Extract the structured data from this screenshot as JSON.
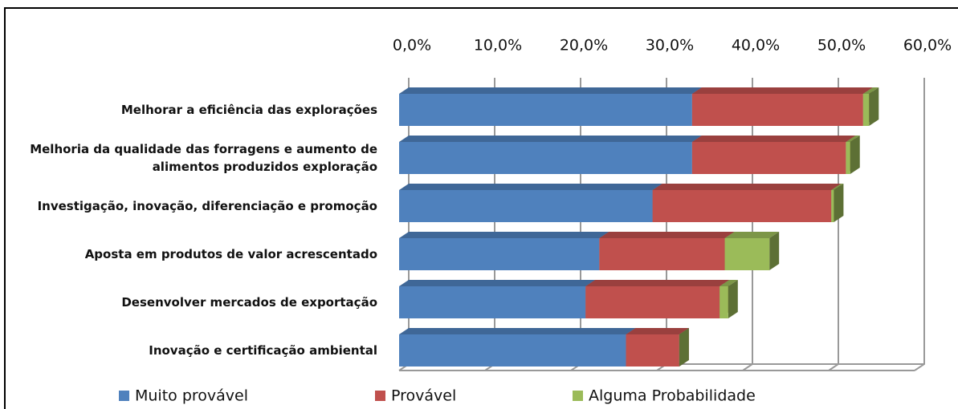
{
  "chart_data": {
    "type": "bar3d_stacked_horizontal",
    "categories": [
      "Melhorar a eficiência das explorações",
      "Melhoria da qualidade das forragens e aumento de alimentos produzidos exploração",
      "Investigação, inovação, diferenciação e promoção",
      "Aposta em produtos de valor acrescentado",
      "Desenvolver mercados de exportação",
      "Inovação e certificação ambiental"
    ],
    "series": [
      {
        "name": "Muito provável",
        "color": "#4f81bd",
        "values": [
          34.1,
          34.1,
          29.5,
          23.3,
          21.7,
          26.4
        ]
      },
      {
        "name": "Provável",
        "color": "#c0504d",
        "values": [
          19.9,
          17.9,
          20.8,
          14.6,
          15.6,
          6.2
        ]
      },
      {
        "name": "Alguma Probabilidade",
        "color": "#9bbb59",
        "values": [
          0.7,
          0.5,
          0.3,
          5.2,
          1.0,
          0
        ]
      }
    ],
    "xlim": [
      0,
      60
    ],
    "xticks": [
      {
        "value": 0,
        "label": "0,0%"
      },
      {
        "value": 10,
        "label": "10,0%"
      },
      {
        "value": 20,
        "label": "20,0%"
      },
      {
        "value": 30,
        "label": "30,0%"
      },
      {
        "value": 40,
        "label": "40,0%"
      },
      {
        "value": 50,
        "label": "50,0%"
      },
      {
        "value": 60,
        "label": "60,0%"
      }
    ],
    "grid": true,
    "legend": "bottom"
  }
}
